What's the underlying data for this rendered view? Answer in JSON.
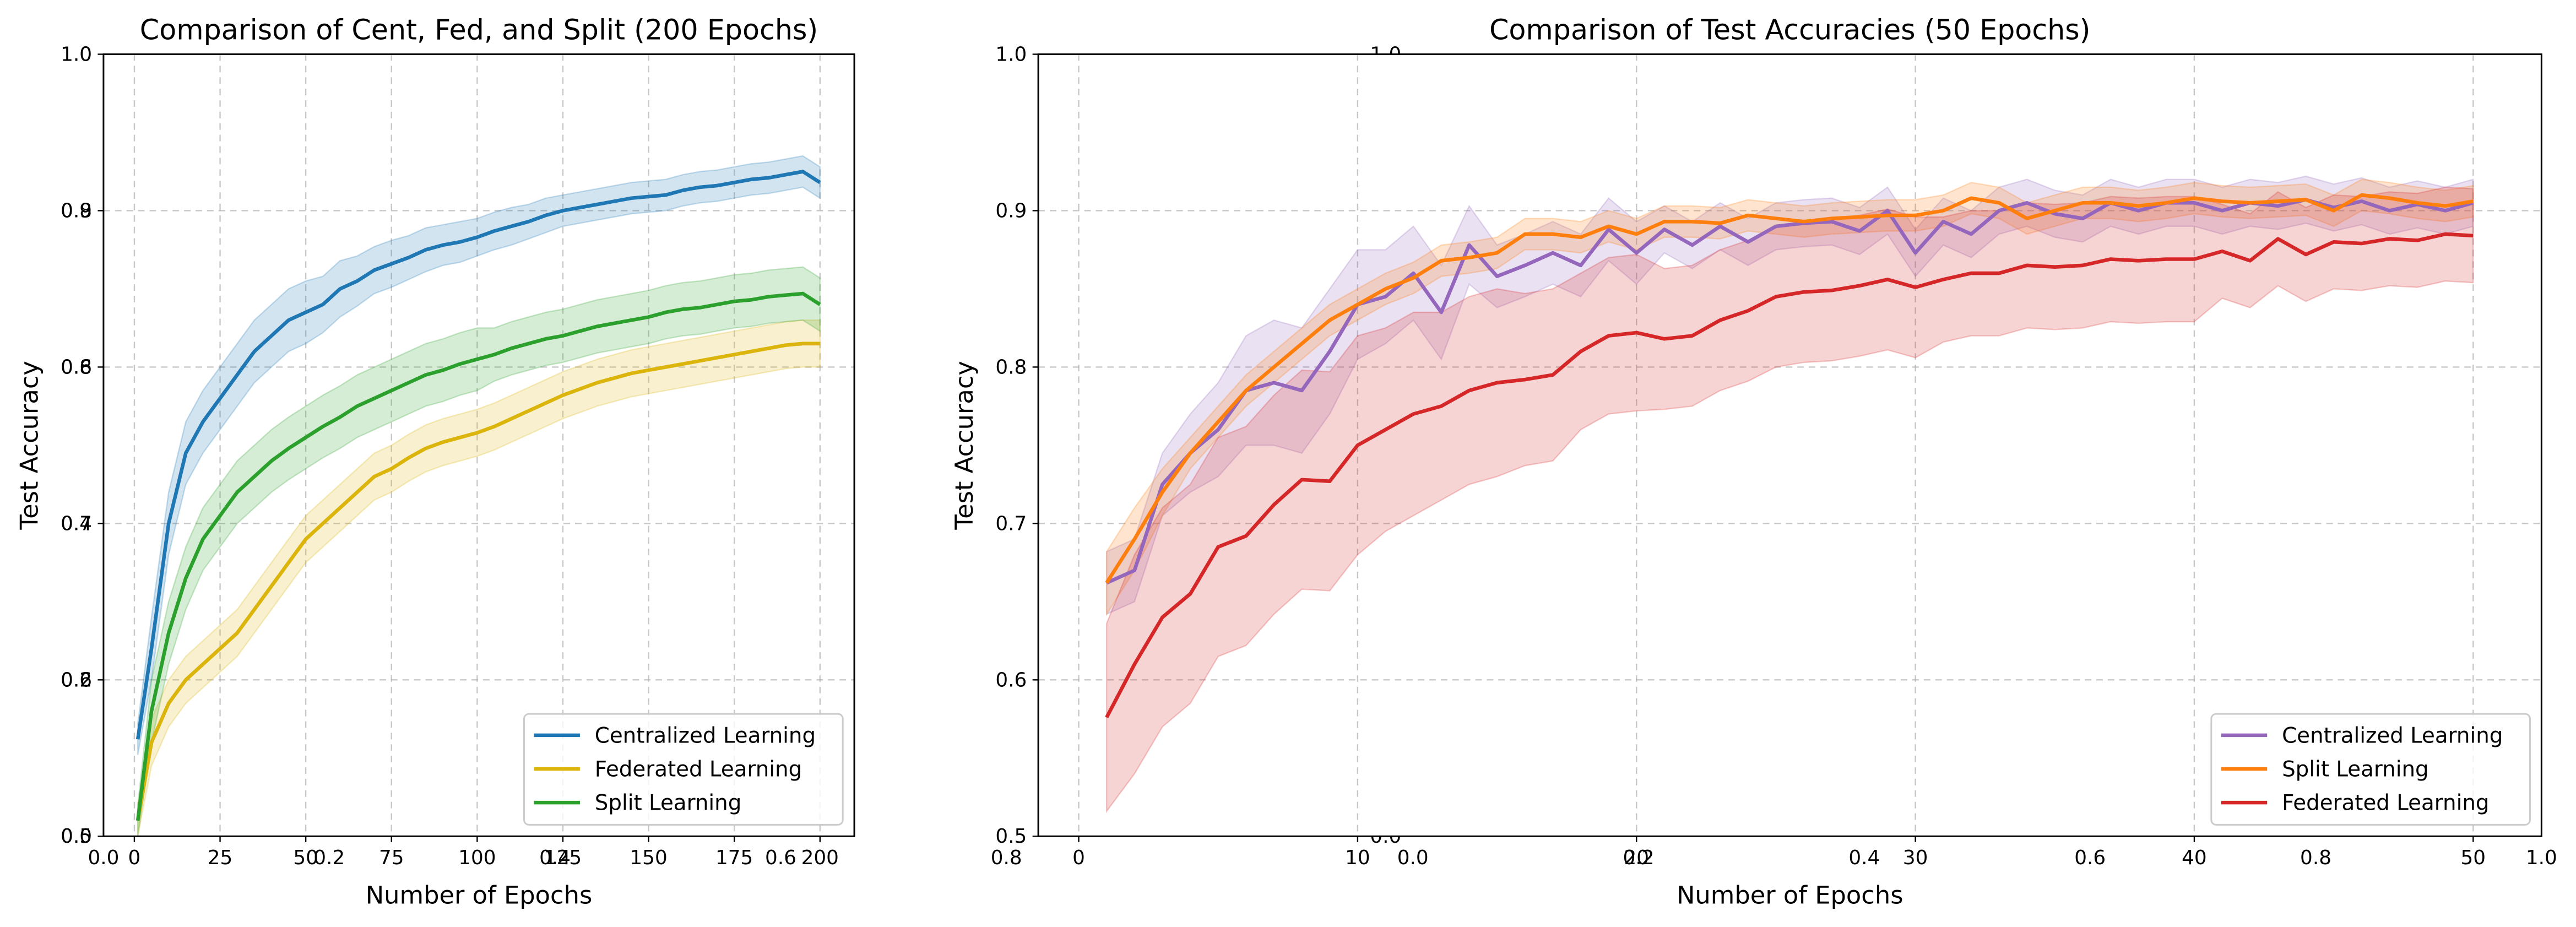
{
  "chart_data": [
    {
      "type": "line",
      "title": "Comparison of Cent, Fed, and Split (200 Epochs)",
      "x_label": "Number of Epochs",
      "y_label": "Test Accuracy",
      "x": [
        1,
        5,
        10,
        15,
        20,
        25,
        30,
        35,
        40,
        45,
        50,
        55,
        60,
        65,
        70,
        75,
        80,
        85,
        90,
        95,
        100,
        105,
        110,
        115,
        120,
        125,
        130,
        135,
        140,
        145,
        150,
        155,
        160,
        165,
        170,
        175,
        180,
        185,
        190,
        195,
        200
      ],
      "xlim": [
        -9,
        210
      ],
      "xticks": [
        0,
        25,
        50,
        75,
        100,
        125,
        150,
        175,
        200
      ],
      "ylim": [
        0.5,
        1.0
      ],
      "yticks": [
        0.5,
        0.6,
        0.7,
        0.8,
        0.9,
        {
          "value": 1.0,
          "label": "1.0"
        }
      ],
      "grid": true,
      "legend": "lower right",
      "series": [
        {
          "name": "Centralized Learning",
          "color": "#1f77b4",
          "values": [
            0.562,
            0.62,
            0.7,
            0.745,
            0.765,
            0.78,
            0.795,
            0.81,
            0.82,
            0.83,
            0.835,
            0.84,
            0.85,
            0.855,
            0.862,
            0.866,
            0.87,
            0.875,
            0.878,
            0.88,
            0.883,
            0.887,
            0.89,
            0.893,
            0.897,
            0.9,
            0.902,
            0.904,
            0.906,
            0.908,
            0.909,
            0.91,
            0.913,
            0.915,
            0.916,
            0.918,
            0.92,
            0.921,
            0.923,
            0.925,
            0.918
          ],
          "error": [
            0.01,
            0.02,
            0.02,
            0.02,
            0.02,
            0.02,
            0.02,
            0.02,
            0.02,
            0.02,
            0.02,
            0.018,
            0.018,
            0.016,
            0.015,
            0.015,
            0.014,
            0.014,
            0.013,
            0.013,
            0.012,
            0.012,
            0.012,
            0.011,
            0.011,
            0.01,
            0.01,
            0.01,
            0.01,
            0.01,
            0.01,
            0.01,
            0.01,
            0.01,
            0.01,
            0.01,
            0.01,
            0.01,
            0.01,
            0.01,
            0.01
          ]
        },
        {
          "name": "Federated Learning",
          "color": "#dbb40c",
          "values": [
            0.51,
            0.56,
            0.585,
            0.6,
            0.61,
            0.62,
            0.63,
            0.645,
            0.66,
            0.675,
            0.69,
            0.7,
            0.71,
            0.72,
            0.73,
            0.735,
            0.742,
            0.748,
            0.752,
            0.755,
            0.758,
            0.762,
            0.767,
            0.772,
            0.777,
            0.782,
            0.786,
            0.79,
            0.793,
            0.796,
            0.798,
            0.8,
            0.802,
            0.804,
            0.806,
            0.808,
            0.81,
            0.812,
            0.814,
            0.815,
            0.815
          ],
          "error": [
            0.01,
            0.015,
            0.015,
            0.015,
            0.015,
            0.015,
            0.015,
            0.015,
            0.015,
            0.015,
            0.015,
            0.015,
            0.015,
            0.015,
            0.015,
            0.015,
            0.015,
            0.015,
            0.015,
            0.015,
            0.015,
            0.015,
            0.015,
            0.015,
            0.015,
            0.015,
            0.015,
            0.015,
            0.015,
            0.015,
            0.015,
            0.015,
            0.015,
            0.015,
            0.015,
            0.015,
            0.015,
            0.015,
            0.015,
            0.015,
            0.015
          ]
        },
        {
          "name": "Split Learning",
          "color": "#2ca02c",
          "values": [
            0.51,
            0.58,
            0.63,
            0.665,
            0.69,
            0.705,
            0.72,
            0.73,
            0.74,
            0.748,
            0.755,
            0.762,
            0.768,
            0.775,
            0.78,
            0.785,
            0.79,
            0.795,
            0.798,
            0.802,
            0.805,
            0.808,
            0.812,
            0.815,
            0.818,
            0.82,
            0.823,
            0.826,
            0.828,
            0.83,
            0.832,
            0.835,
            0.837,
            0.838,
            0.84,
            0.842,
            0.843,
            0.845,
            0.846,
            0.847,
            0.84
          ],
          "error": [
            0.01,
            0.02,
            0.02,
            0.02,
            0.02,
            0.02,
            0.02,
            0.02,
            0.02,
            0.02,
            0.02,
            0.02,
            0.02,
            0.02,
            0.02,
            0.02,
            0.02,
            0.02,
            0.02,
            0.02,
            0.02,
            0.017,
            0.017,
            0.017,
            0.017,
            0.017,
            0.017,
            0.017,
            0.017,
            0.017,
            0.017,
            0.017,
            0.017,
            0.017,
            0.017,
            0.017,
            0.017,
            0.017,
            0.017,
            0.017,
            0.017
          ]
        }
      ]
    },
    {
      "type": "line",
      "title": "Comparison of Test Accuracies (50 Epochs)",
      "x_label": "Number of Epochs",
      "y_label": "Test Accuracy",
      "x": [
        1,
        2,
        3,
        4,
        5,
        6,
        7,
        8,
        9,
        10,
        11,
        12,
        13,
        14,
        15,
        16,
        17,
        18,
        19,
        20,
        21,
        22,
        23,
        24,
        25,
        26,
        27,
        28,
        29,
        30,
        31,
        32,
        33,
        34,
        35,
        36,
        37,
        38,
        39,
        40,
        41,
        42,
        43,
        44,
        45,
        46,
        47,
        48,
        49,
        50
      ],
      "xlim": [
        -1.45,
        52.45
      ],
      "xticks": [
        0,
        10,
        20,
        30,
        40,
        50
      ],
      "ylim": [
        0.5,
        1.0
      ],
      "yticks": [
        0.5,
        0.6,
        0.7,
        0.8,
        0.9,
        {
          "value": 1.0,
          "label": "1.0"
        }
      ],
      "grid": true,
      "legend": "lower right",
      "series": [
        {
          "name": "Centralized Learning",
          "color": "#9467bd",
          "values": [
            0.662,
            0.67,
            0.725,
            0.745,
            0.76,
            0.785,
            0.79,
            0.785,
            0.81,
            0.84,
            0.845,
            0.86,
            0.835,
            0.878,
            0.858,
            0.865,
            0.873,
            0.865,
            0.888,
            0.873,
            0.888,
            0.878,
            0.89,
            0.88,
            0.89,
            0.892,
            0.893,
            0.887,
            0.9,
            0.873,
            0.893,
            0.885,
            0.9,
            0.905,
            0.898,
            0.895,
            0.905,
            0.9,
            0.905,
            0.905,
            0.9,
            0.905,
            0.903,
            0.907,
            0.902,
            0.906,
            0.9,
            0.904,
            0.9,
            0.905
          ],
          "error": [
            0.02,
            0.02,
            0.02,
            0.025,
            0.03,
            0.035,
            0.04,
            0.04,
            0.04,
            0.035,
            0.03,
            0.03,
            0.03,
            0.025,
            0.02,
            0.02,
            0.02,
            0.02,
            0.02,
            0.02,
            0.015,
            0.015,
            0.015,
            0.015,
            0.015,
            0.015,
            0.015,
            0.015,
            0.015,
            0.015,
            0.015,
            0.015,
            0.015,
            0.015,
            0.015,
            0.015,
            0.015,
            0.015,
            0.015,
            0.015,
            0.015,
            0.015,
            0.015,
            0.015,
            0.015,
            0.015,
            0.015,
            0.015,
            0.015,
            0.015
          ]
        },
        {
          "name": "Split Learning",
          "color": "#ff7f0e",
          "values": [
            0.662,
            0.69,
            0.72,
            0.745,
            0.765,
            0.785,
            0.8,
            0.815,
            0.83,
            0.84,
            0.85,
            0.857,
            0.868,
            0.87,
            0.873,
            0.885,
            0.885,
            0.883,
            0.89,
            0.885,
            0.893,
            0.893,
            0.892,
            0.897,
            0.895,
            0.893,
            0.895,
            0.896,
            0.897,
            0.897,
            0.9,
            0.908,
            0.905,
            0.895,
            0.9,
            0.905,
            0.905,
            0.903,
            0.905,
            0.908,
            0.906,
            0.905,
            0.906,
            0.907,
            0.9,
            0.91,
            0.908,
            0.905,
            0.903,
            0.906
          ],
          "error": [
            0.02,
            0.02,
            0.015,
            0.01,
            0.01,
            0.01,
            0.01,
            0.01,
            0.01,
            0.01,
            0.01,
            0.01,
            0.01,
            0.01,
            0.01,
            0.01,
            0.01,
            0.01,
            0.01,
            0.01,
            0.01,
            0.01,
            0.01,
            0.01,
            0.01,
            0.01,
            0.01,
            0.01,
            0.01,
            0.01,
            0.01,
            0.01,
            0.01,
            0.01,
            0.01,
            0.01,
            0.01,
            0.01,
            0.01,
            0.01,
            0.01,
            0.01,
            0.01,
            0.01,
            0.01,
            0.01,
            0.01,
            0.01,
            0.01,
            0.01
          ]
        },
        {
          "name": "Federated Learning",
          "color": "#d62728",
          "values": [
            0.576,
            0.61,
            0.64,
            0.655,
            0.685,
            0.692,
            0.712,
            0.728,
            0.727,
            0.75,
            0.76,
            0.77,
            0.775,
            0.785,
            0.79,
            0.792,
            0.795,
            0.81,
            0.82,
            0.822,
            0.818,
            0.82,
            0.83,
            0.836,
            0.845,
            0.848,
            0.849,
            0.852,
            0.856,
            0.851,
            0.856,
            0.86,
            0.86,
            0.865,
            0.864,
            0.865,
            0.869,
            0.868,
            0.869,
            0.869,
            0.874,
            0.868,
            0.882,
            0.872,
            0.88,
            0.879,
            0.882,
            0.881,
            0.885,
            0.884
          ],
          "error": [
            0.06,
            0.07,
            0.07,
            0.07,
            0.07,
            0.07,
            0.07,
            0.07,
            0.07,
            0.07,
            0.065,
            0.065,
            0.06,
            0.06,
            0.06,
            0.055,
            0.055,
            0.05,
            0.05,
            0.05,
            0.045,
            0.045,
            0.045,
            0.045,
            0.045,
            0.045,
            0.045,
            0.045,
            0.045,
            0.045,
            0.04,
            0.04,
            0.04,
            0.04,
            0.04,
            0.04,
            0.04,
            0.04,
            0.04,
            0.04,
            0.03,
            0.03,
            0.03,
            0.03,
            0.03,
            0.03,
            0.03,
            0.03,
            0.03,
            0.03
          ]
        }
      ]
    },
    {
      "type": "axes",
      "xlim": [
        0,
        1
      ],
      "ylim": [
        0,
        1
      ],
      "xticks": [
        {
          "value": 0,
          "label": "0.0"
        },
        0.2,
        0.4,
        0.6,
        0.8
      ],
      "yticks": [
        {
          "value": 0,
          "label": "0.0"
        },
        0.2,
        0.4,
        0.6,
        0.8,
        {
          "value": 1,
          "label": "1.0"
        }
      ]
    },
    {
      "type": "axes",
      "xlim": [
        0,
        1
      ],
      "ylim": [
        0,
        1
      ],
      "xticks": [
        {
          "value": 0,
          "label": "0.0"
        },
        0.2,
        0.4,
        0.6,
        0.8,
        {
          "value": 1,
          "label": "1.0"
        }
      ],
      "yticks": [
        {
          "value": 0,
          "label": "0.0"
        },
        {
          "value": 1,
          "label": "1.0"
        }
      ]
    }
  ]
}
